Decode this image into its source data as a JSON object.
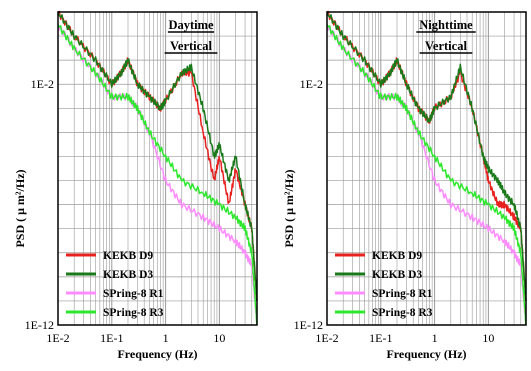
{
  "chart_data": [
    {
      "type": "line",
      "title": "Daytime\nVertical",
      "xlabel": "Frequency (Hz)",
      "ylabel": "PSD ( μ m²/Hz)",
      "x_scale": "log",
      "y_scale": "log",
      "xlim": [
        0.01,
        50
      ],
      "ylim": [
        1e-12,
        10.0
      ],
      "x_ticks": [
        "1E-2",
        "1E-1",
        "1",
        "10"
      ],
      "y_ticks": [
        "1E-2",
        "1E-12"
      ],
      "grid": true,
      "legend_position": "bottom-left",
      "series": [
        {
          "name": "KEKB D9",
          "color": "#e8201e",
          "x": [
            0.01,
            0.02,
            0.05,
            0.1,
            0.15,
            0.2,
            0.3,
            0.5,
            0.8,
            1,
            2,
            3,
            5,
            8,
            10,
            15,
            20,
            30,
            40,
            50
          ],
          "y": [
            10.0,
            1.0,
            0.1,
            0.01,
            0.03,
            0.1,
            0.01,
            0.003,
            0.001,
            0.002,
            0.03,
            0.03,
            0.0001,
            1e-06,
            1e-05,
            1e-07,
            3e-06,
            1e-07,
            1e-08,
            1e-11
          ]
        },
        {
          "name": "KEKB D3",
          "color": "#1a7a1a",
          "x": [
            0.01,
            0.02,
            0.05,
            0.1,
            0.15,
            0.2,
            0.3,
            0.5,
            0.8,
            1,
            2,
            3,
            5,
            8,
            10,
            15,
            20,
            30,
            40,
            50
          ],
          "y": [
            10.0,
            1.0,
            0.1,
            0.01,
            0.03,
            0.1,
            0.01,
            0.003,
            0.001,
            0.002,
            0.03,
            0.05,
            0.001,
            1e-05,
            3e-05,
            1e-06,
            1e-05,
            1e-07,
            1e-08,
            1e-11
          ]
        },
        {
          "name": "SPring-8 R1",
          "color": "#ff8cff",
          "x": [
            0.01,
            0.02,
            0.05,
            0.1,
            0.2,
            0.3,
            0.5,
            1,
            2,
            5,
            10,
            20,
            30,
            40,
            50
          ],
          "y": [
            3.0,
            0.3,
            0.03,
            0.003,
            0.003,
            0.001,
            0.0001,
            1e-06,
            1e-07,
            3e-08,
            1e-08,
            3e-09,
            1e-09,
            3e-10,
            1e-12
          ]
        },
        {
          "name": "SPring-8 R3",
          "color": "#2ee82e",
          "x": [
            0.01,
            0.02,
            0.05,
            0.1,
            0.2,
            0.3,
            0.5,
            1,
            2,
            5,
            10,
            20,
            30,
            40,
            50
          ],
          "y": [
            3.0,
            0.3,
            0.03,
            0.003,
            0.003,
            0.001,
            0.0001,
            1e-05,
            1e-06,
            3e-07,
            1e-07,
            3e-08,
            1e-08,
            1e-09,
            1e-12
          ]
        }
      ]
    },
    {
      "type": "line",
      "title": "Nighttime\nVertical",
      "xlabel": "Frequency (Hz)",
      "ylabel": "PSD ( μ m²/Hz)",
      "x_scale": "log",
      "y_scale": "log",
      "xlim": [
        0.01,
        50
      ],
      "ylim": [
        1e-12,
        10.0
      ],
      "x_ticks": [
        "1E-2",
        "1E-1",
        "1",
        "10"
      ],
      "y_ticks": [
        "1E-2",
        "1E-12"
      ],
      "grid": true,
      "legend_position": "bottom-left",
      "series": [
        {
          "name": "KEKB D9",
          "color": "#e8201e",
          "x": [
            0.01,
            0.02,
            0.05,
            0.1,
            0.15,
            0.2,
            0.3,
            0.5,
            0.8,
            1,
            2,
            3,
            5,
            8,
            10,
            15,
            20,
            30,
            40,
            50
          ],
          "y": [
            10.0,
            1.0,
            0.1,
            0.01,
            0.03,
            0.1,
            0.01,
            0.001,
            0.0003,
            0.001,
            0.003,
            0.03,
            0.001,
            1e-05,
            1e-06,
            1e-07,
            1e-07,
            3e-08,
            1e-08,
            1e-11
          ]
        },
        {
          "name": "KEKB D3",
          "color": "#1a7a1a",
          "x": [
            0.01,
            0.02,
            0.05,
            0.1,
            0.15,
            0.2,
            0.3,
            0.5,
            0.8,
            1,
            2,
            3,
            5,
            8,
            10,
            15,
            20,
            30,
            40,
            50
          ],
          "y": [
            10.0,
            1.0,
            0.1,
            0.01,
            0.03,
            0.1,
            0.01,
            0.001,
            0.0003,
            0.001,
            0.003,
            0.05,
            0.001,
            1e-05,
            3e-06,
            1e-06,
            3e-07,
            1e-07,
            1e-08,
            1e-11
          ]
        },
        {
          "name": "SPring-8 R1",
          "color": "#ff8cff",
          "x": [
            0.01,
            0.02,
            0.05,
            0.1,
            0.2,
            0.3,
            0.5,
            1,
            2,
            5,
            10,
            20,
            30,
            40,
            50
          ],
          "y": [
            3.0,
            0.3,
            0.03,
            0.003,
            0.003,
            0.001,
            0.0001,
            1e-06,
            1e-07,
            3e-08,
            1e-08,
            3e-09,
            1e-09,
            3e-10,
            1e-12
          ]
        },
        {
          "name": "SPring-8 R3",
          "color": "#2ee82e",
          "x": [
            0.01,
            0.02,
            0.05,
            0.1,
            0.2,
            0.3,
            0.5,
            1,
            2,
            5,
            10,
            20,
            30,
            40,
            50
          ],
          "y": [
            3.0,
            0.3,
            0.03,
            0.003,
            0.003,
            0.001,
            0.0001,
            1e-05,
            1e-06,
            3e-07,
            1e-07,
            3e-08,
            1e-08,
            1e-09,
            1e-12
          ]
        }
      ]
    }
  ]
}
